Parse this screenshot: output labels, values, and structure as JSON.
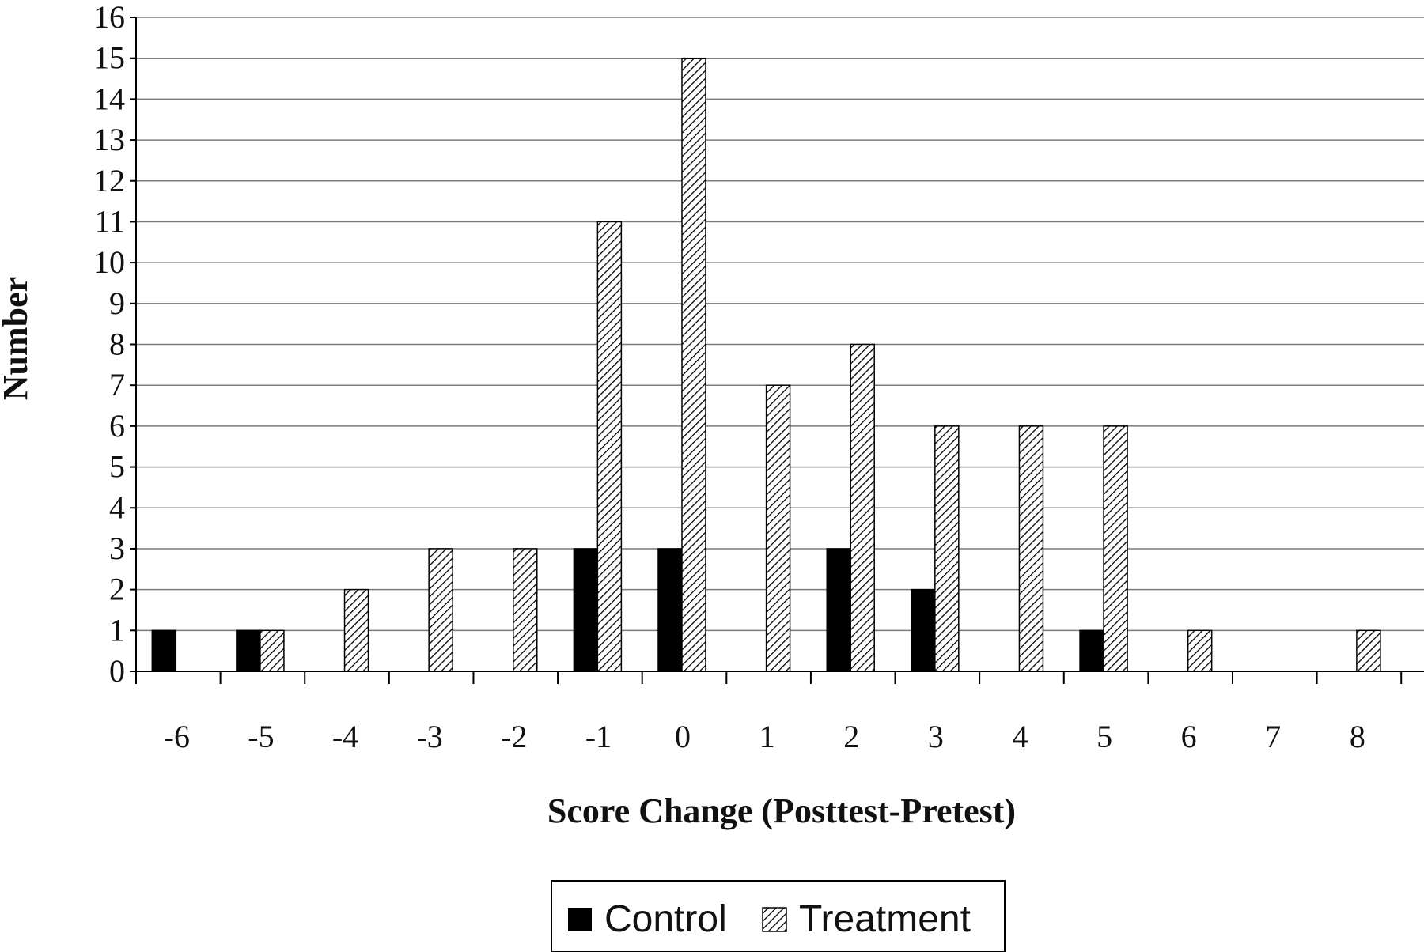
{
  "chart_data": {
    "type": "bar",
    "title": "",
    "xlabel": "Score Change (Posttest-Pretest)",
    "ylabel": "Number",
    "categories": [
      "-6",
      "-5",
      "-4",
      "-3",
      "-2",
      "-1",
      "0",
      "1",
      "2",
      "3",
      "4",
      "5",
      "6",
      "7",
      "8"
    ],
    "series": [
      {
        "name": "Control",
        "values": [
          1,
          1,
          0,
          0,
          0,
          3,
          3,
          0,
          3,
          2,
          0,
          1,
          0,
          0,
          0
        ],
        "fill": "#000000"
      },
      {
        "name": "Treatment",
        "values": [
          0,
          1,
          2,
          3,
          3,
          11,
          15,
          7,
          8,
          6,
          6,
          6,
          1,
          0,
          1
        ],
        "fill": "hatch"
      }
    ],
    "yticks": [
      "0",
      "1",
      "2",
      "3",
      "4",
      "5",
      "6",
      "7",
      "8",
      "9",
      "10",
      "11",
      "12",
      "13",
      "14",
      "15",
      "16"
    ],
    "ylim": [
      0,
      16
    ],
    "grid": true,
    "legend_position": "bottom-center"
  }
}
